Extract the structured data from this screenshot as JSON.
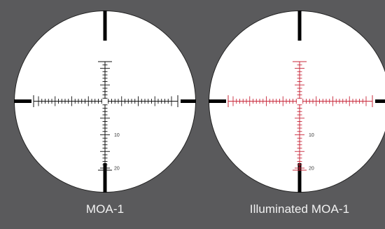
{
  "panels": [
    {
      "caption": "MOA-1",
      "reticle_color": "#111111",
      "labels": [
        "10",
        "20"
      ]
    },
    {
      "caption": "Illuminated MOA-1",
      "reticle_color": "#c8283a",
      "labels": [
        "10",
        "20"
      ]
    }
  ],
  "colors": {
    "background": "#5a5a5c",
    "lens": "#ffffff",
    "post": "#000000"
  }
}
